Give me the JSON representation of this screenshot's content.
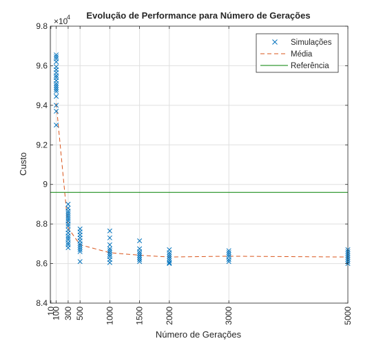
{
  "chart_data": {
    "type": "scatter",
    "title": "Evolução de Performance para Número de Gerações",
    "xlabel": "Número de Gerações",
    "ylabel": "Custo",
    "y_exponent_label": "×10",
    "y_exponent_power": "4",
    "xlim": [
      0,
      5000
    ],
    "ylim": [
      84000,
      98000
    ],
    "x_ticks": [
      10,
      100,
      300,
      500,
      1000,
      1500,
      2000,
      3000,
      5000
    ],
    "y_ticks": [
      84000,
      86000,
      88000,
      90000,
      92000,
      94000,
      96000,
      98000
    ],
    "y_tick_labels": [
      "8.4",
      "8.6",
      "8.8",
      "9",
      "9.2",
      "9.4",
      "9.6",
      "9.8"
    ],
    "grid": true,
    "legend_position": "top-right",
    "colors": {
      "simulacoes": "#0072bd",
      "media": "#d95319",
      "referencia": "#008000",
      "grid": "#dfdfdf",
      "axes": "#262626"
    },
    "series": [
      {
        "name": "Simulações",
        "style": "markers-x",
        "points": [
          [
            100,
            96550
          ],
          [
            100,
            96450
          ],
          [
            100,
            96350
          ],
          [
            100,
            96200
          ],
          [
            100,
            95950
          ],
          [
            100,
            95800
          ],
          [
            100,
            95650
          ],
          [
            100,
            95500
          ],
          [
            100,
            95400
          ],
          [
            100,
            95250
          ],
          [
            100,
            95100
          ],
          [
            100,
            95000
          ],
          [
            100,
            94900
          ],
          [
            100,
            94800
          ],
          [
            100,
            94700
          ],
          [
            100,
            94450
          ],
          [
            100,
            94000
          ],
          [
            100,
            93700
          ],
          [
            100,
            93000
          ],
          [
            300,
            89000
          ],
          [
            300,
            88800
          ],
          [
            300,
            88650
          ],
          [
            300,
            88550
          ],
          [
            300,
            88450
          ],
          [
            300,
            88350
          ],
          [
            300,
            88250
          ],
          [
            300,
            88150
          ],
          [
            300,
            88000
          ],
          [
            300,
            87900
          ],
          [
            300,
            87700
          ],
          [
            300,
            87550
          ],
          [
            300,
            87400
          ],
          [
            300,
            87300
          ],
          [
            300,
            87200
          ],
          [
            300,
            87050
          ],
          [
            300,
            86950
          ],
          [
            300,
            86800
          ],
          [
            500,
            87750
          ],
          [
            500,
            87600
          ],
          [
            500,
            87450
          ],
          [
            500,
            87300
          ],
          [
            500,
            87150
          ],
          [
            500,
            87000
          ],
          [
            500,
            86900
          ],
          [
            500,
            86800
          ],
          [
            500,
            86700
          ],
          [
            500,
            86600
          ],
          [
            500,
            86100
          ],
          [
            1000,
            87650
          ],
          [
            1000,
            87300
          ],
          [
            1000,
            86950
          ],
          [
            1000,
            86750
          ],
          [
            1000,
            86650
          ],
          [
            1000,
            86550
          ],
          [
            1000,
            86450
          ],
          [
            1000,
            86350
          ],
          [
            1000,
            86200
          ],
          [
            1000,
            86050
          ],
          [
            1500,
            87150
          ],
          [
            1500,
            86750
          ],
          [
            1500,
            86600
          ],
          [
            1500,
            86500
          ],
          [
            1500,
            86400
          ],
          [
            1500,
            86300
          ],
          [
            1500,
            86200
          ],
          [
            1500,
            86100
          ],
          [
            2000,
            86700
          ],
          [
            2000,
            86550
          ],
          [
            2000,
            86450
          ],
          [
            2000,
            86350
          ],
          [
            2000,
            86250
          ],
          [
            2000,
            86150
          ],
          [
            2000,
            86050
          ],
          [
            2000,
            86000
          ],
          [
            3000,
            86650
          ],
          [
            3000,
            86550
          ],
          [
            3000,
            86450
          ],
          [
            3000,
            86350
          ],
          [
            3000,
            86200
          ],
          [
            3000,
            86100
          ],
          [
            5000,
            86700
          ],
          [
            5000,
            86600
          ],
          [
            5000,
            86500
          ],
          [
            5000,
            86400
          ],
          [
            5000,
            86300
          ],
          [
            5000,
            86200
          ],
          [
            5000,
            86100
          ],
          [
            5000,
            86000
          ]
        ]
      },
      {
        "name": "Média",
        "style": "dashed-line",
        "points": [
          [
            100,
            94100
          ],
          [
            300,
            87800
          ],
          [
            500,
            86950
          ],
          [
            1000,
            86550
          ],
          [
            1500,
            86420
          ],
          [
            2000,
            86330
          ],
          [
            3000,
            86370
          ],
          [
            5000,
            86330
          ]
        ]
      },
      {
        "name": "Referência",
        "style": "solid-line",
        "points": [
          [
            0,
            89600
          ],
          [
            5000,
            89600
          ]
        ]
      }
    ]
  }
}
